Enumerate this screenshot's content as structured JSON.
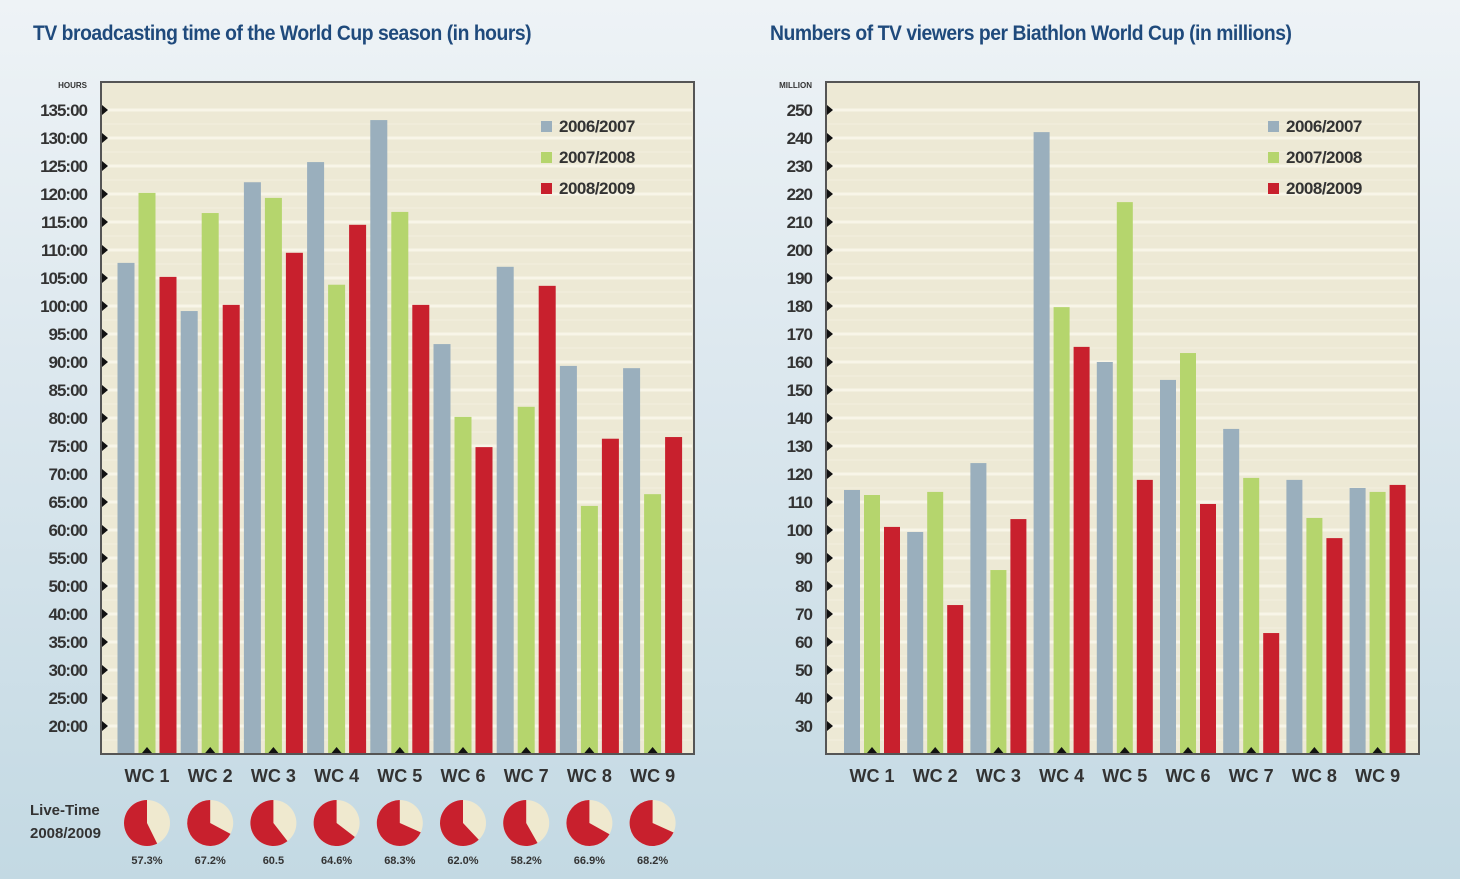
{
  "colors": {
    "series": [
      "#9aafbd",
      "#b5d56d",
      "#c8202d"
    ],
    "plot_bg": "#ede9d5",
    "grid": "#f8f5e8",
    "frame": "#555555",
    "pie_rest": "#efe9cf",
    "title": "#1f4a7c"
  },
  "chart_data": [
    {
      "type": "bar",
      "title": "TV broadcasting time of the World Cup season (in hours)",
      "ylabel": "HOURS",
      "xlabel": "",
      "categories": [
        "WC 1",
        "WC 2",
        "WC 3",
        "WC 4",
        "WC 5",
        "WC 6",
        "WC 7",
        "WC 8",
        "WC 9"
      ],
      "yticks": [
        "135:00",
        "130:00",
        "125:00",
        "120:00",
        "115:00",
        "110:00",
        "105:00",
        "100:00",
        "95:00",
        "90:00",
        "85:00",
        "80:00",
        "75:00",
        "70:00",
        "65:00",
        "60:00",
        "55:00",
        "50:00",
        "40:00",
        "35:00",
        "30:00",
        "25:00",
        "20:00"
      ],
      "ytick_values": [
        135,
        130,
        125,
        120,
        115,
        110,
        105,
        100,
        95,
        90,
        85,
        80,
        75,
        70,
        65,
        60,
        55,
        50,
        40,
        35,
        30,
        25,
        20
      ],
      "ylim": [
        15,
        140
      ],
      "grid": true,
      "legend_position": "top-right",
      "series": [
        {
          "name": "2006/2007",
          "values": [
            107.7,
            99.1,
            122.1,
            125.7,
            133.2,
            93.2,
            107.0,
            89.3,
            88.9
          ]
        },
        {
          "name": "2007/2008",
          "values": [
            120.2,
            116.6,
            119.3,
            103.8,
            116.8,
            80.2,
            82.0,
            64.3,
            66.4
          ]
        },
        {
          "name": "2008/2009",
          "values": [
            105.2,
            100.2,
            109.5,
            114.5,
            100.2,
            74.8,
            103.6,
            76.3,
            76.6
          ]
        }
      ],
      "live_time": {
        "label_line1": "Live-Time",
        "label_line2": "2008/2009",
        "values": [
          57.3,
          67.2,
          60.5,
          64.6,
          68.3,
          62.0,
          58.2,
          66.9,
          68.2
        ],
        "labels": [
          "57.3%",
          "67.2%",
          "60.5",
          "64.6%",
          "68.3%",
          "62.0%",
          "58.2%",
          "66.9%",
          "68.2%"
        ]
      }
    },
    {
      "type": "bar",
      "title": "Numbers of TV viewers per Biathlon World Cup (in millions)",
      "ylabel": "MILLION",
      "xlabel": "",
      "categories": [
        "WC 1",
        "WC 2",
        "WC 3",
        "WC 4",
        "WC 5",
        "WC 6",
        "WC 7",
        "WC 8",
        "WC 9"
      ],
      "yticks": [
        "250",
        "240",
        "230",
        "220",
        "210",
        "200",
        "190",
        "180",
        "170",
        "160",
        "150",
        "140",
        "130",
        "120",
        "110",
        "100",
        "90",
        "80",
        "70",
        "60",
        "50",
        "40",
        "30"
      ],
      "ytick_values": [
        250,
        240,
        230,
        220,
        210,
        200,
        190,
        180,
        170,
        160,
        150,
        140,
        130,
        120,
        110,
        100,
        90,
        80,
        70,
        60,
        50,
        40,
        30
      ],
      "ylim": [
        20,
        260
      ],
      "grid": true,
      "legend_position": "top-right",
      "series": [
        {
          "name": "2006/2007",
          "values": [
            114.3,
            99.3,
            123.9,
            242.1,
            160.0,
            153.6,
            136.1,
            117.9,
            115.0
          ]
        },
        {
          "name": "2007/2008",
          "values": [
            112.5,
            113.6,
            85.7,
            179.6,
            217.1,
            163.2,
            118.6,
            104.3,
            113.6
          ]
        },
        {
          "name": "2008/2009",
          "values": [
            101.1,
            73.2,
            103.9,
            165.4,
            117.9,
            109.3,
            63.2,
            97.1,
            116.1
          ]
        }
      ]
    }
  ]
}
